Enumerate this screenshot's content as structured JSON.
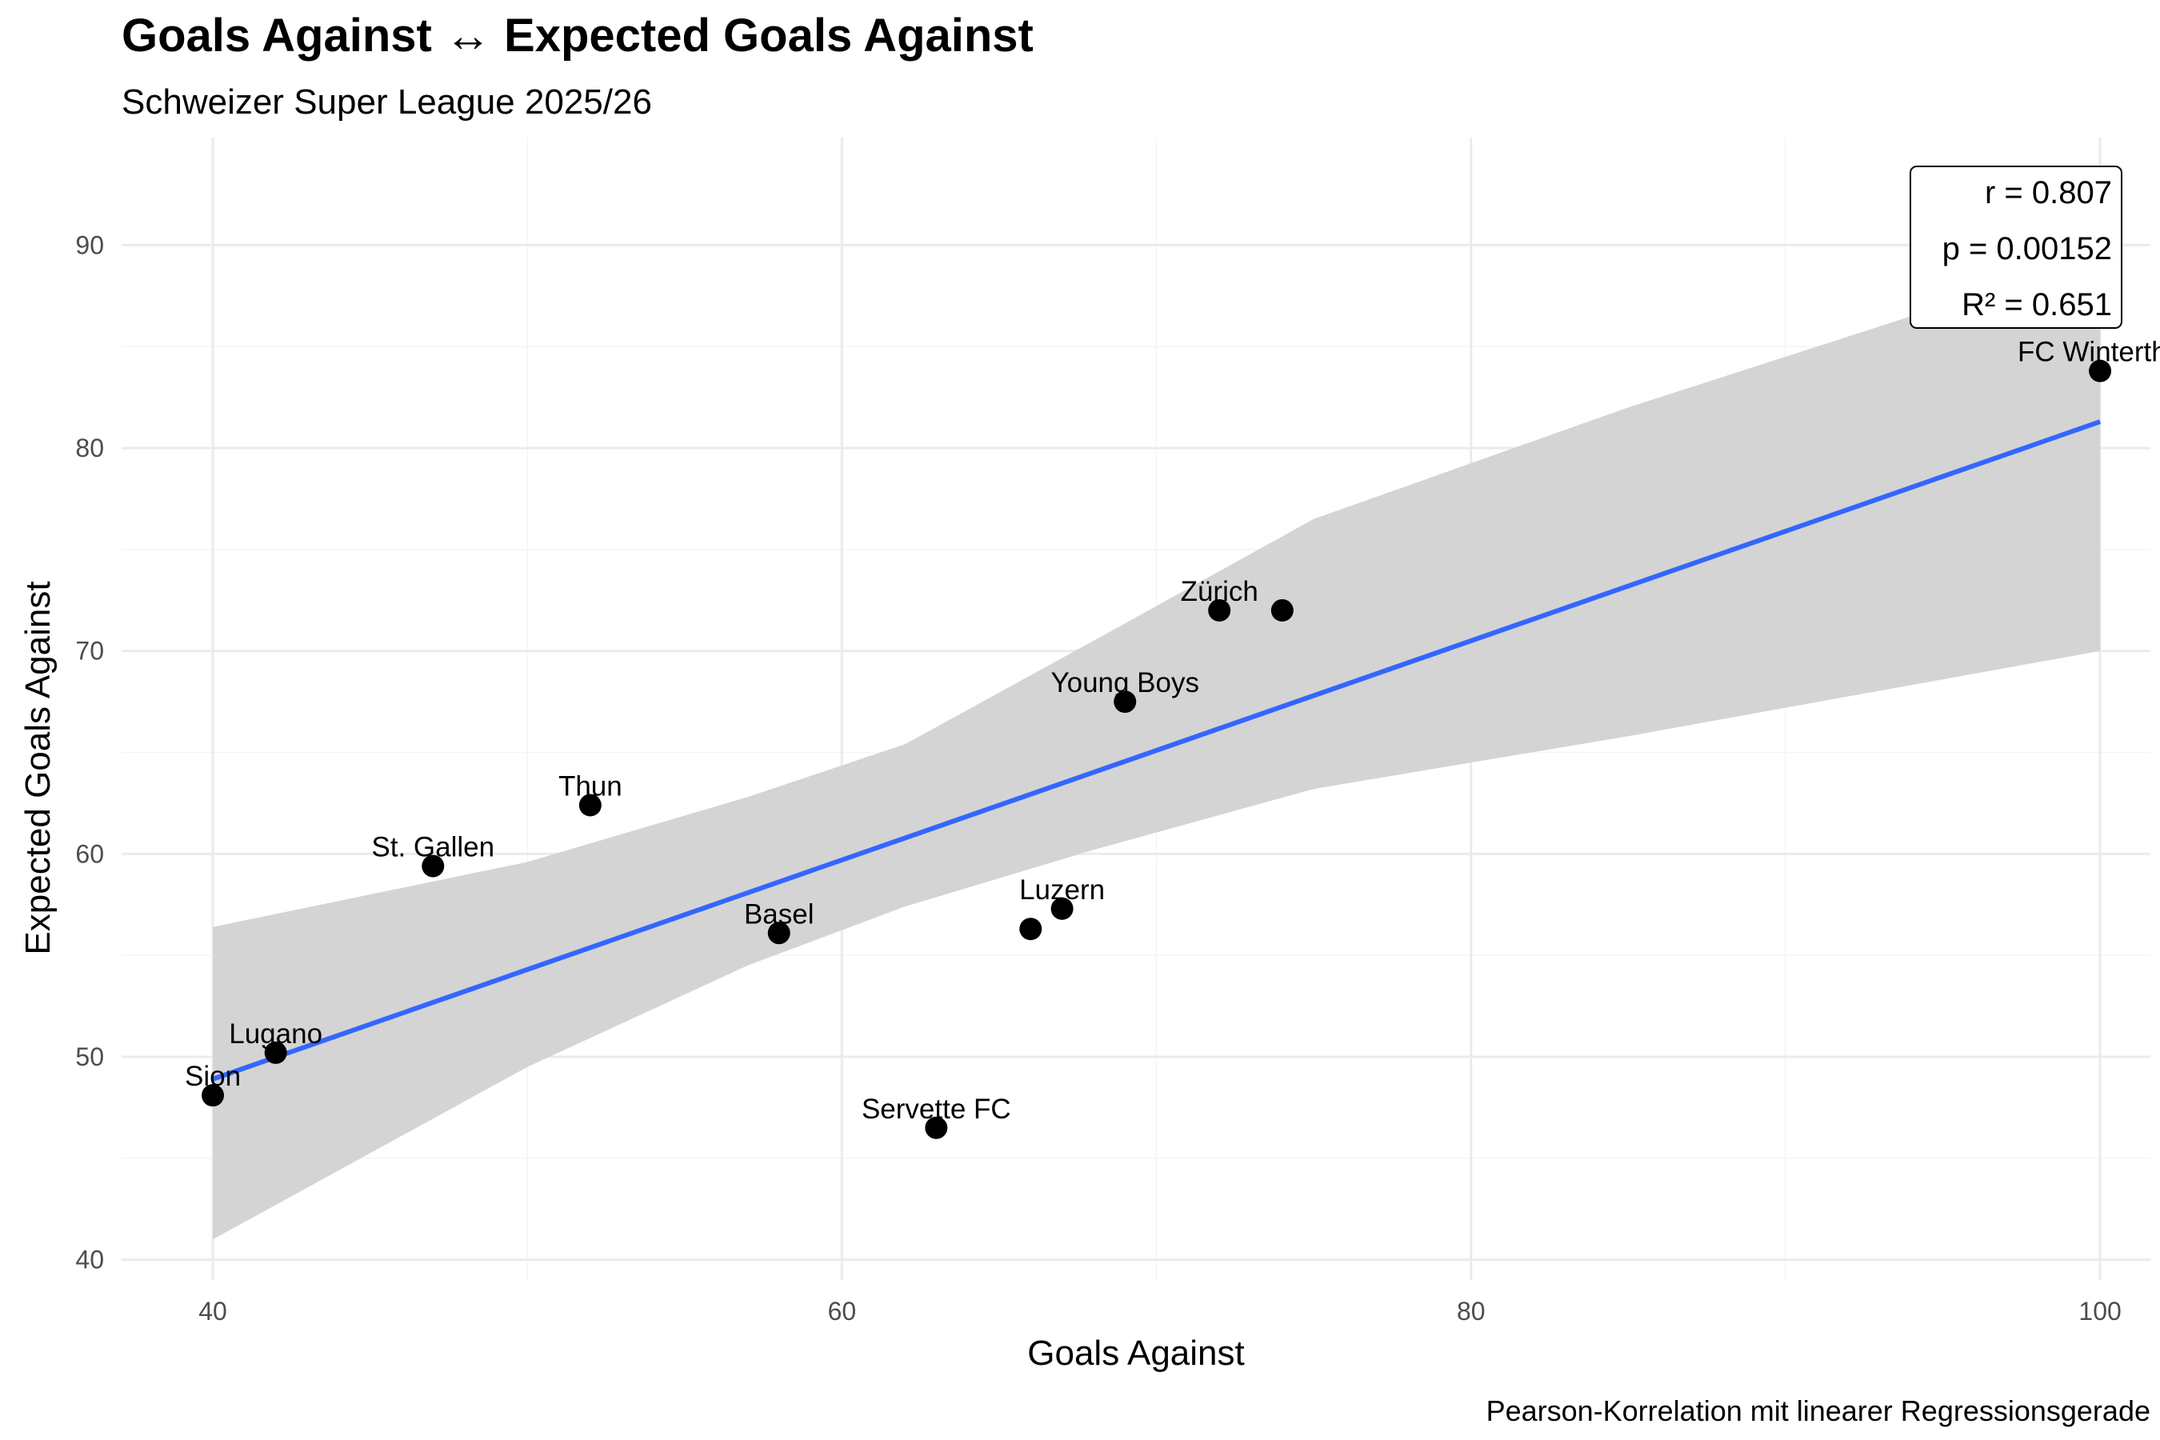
{
  "chart_data": {
    "type": "scatter",
    "title": "Goals Against ↔ Expected Goals Against",
    "subtitle": "Schweizer Super League 2025/26",
    "xlabel": "Goals Against",
    "ylabel": "Expected Goals Against",
    "caption": "Pearson-Korrelation mit linearer Regressionsgerade",
    "xlim": [
      37.1,
      101.6
    ],
    "ylim": [
      39.0,
      95.3
    ],
    "x_ticks": [
      40,
      60,
      80,
      100
    ],
    "y_ticks": [
      40,
      50,
      60,
      70,
      80,
      90
    ],
    "grid": true,
    "points": [
      {
        "x": 40,
        "y": 48.1
      },
      {
        "x": 42,
        "y": 50.2
      },
      {
        "x": 47,
        "y": 59.4
      },
      {
        "x": 52,
        "y": 62.4
      },
      {
        "x": 58,
        "y": 56.1
      },
      {
        "x": 63,
        "y": 46.5
      },
      {
        "x": 66,
        "y": 56.3
      },
      {
        "x": 67,
        "y": 57.3
      },
      {
        "x": 69,
        "y": 67.5
      },
      {
        "x": 72,
        "y": 72.0
      },
      {
        "x": 74,
        "y": 72.0
      },
      {
        "x": 100,
        "y": 83.8
      }
    ],
    "labels": [
      {
        "text": "Sion",
        "x": 40,
        "y": 48.1
      },
      {
        "text": "Lugano",
        "x": 42,
        "y": 50.2
      },
      {
        "text": "St. Gallen",
        "x": 47,
        "y": 59.4
      },
      {
        "text": "Thun",
        "x": 52,
        "y": 62.4
      },
      {
        "text": "Basel",
        "x": 58,
        "y": 56.1
      },
      {
        "text": "Servette FC",
        "x": 63,
        "y": 46.5
      },
      {
        "text": "Luzern",
        "x": 67,
        "y": 57.3
      },
      {
        "text": "Young Boys",
        "x": 69,
        "y": 67.5
      },
      {
        "text": "Zürich",
        "x": 72,
        "y": 72.0
      },
      {
        "text": "FC Winterthu",
        "x": 100,
        "y": 83.8
      }
    ],
    "regression": {
      "x": [
        40,
        100
      ],
      "y": [
        48.9,
        81.3
      ],
      "ci": [
        {
          "x": 40,
          "lo": 41.0,
          "hi": 56.4
        },
        {
          "x": 50,
          "lo": 49.5,
          "hi": 59.6
        },
        {
          "x": 57,
          "lo": 54.5,
          "hi": 62.8
        },
        {
          "x": 62,
          "lo": 57.4,
          "hi": 65.4
        },
        {
          "x": 68,
          "lo": 60.2,
          "hi": 70.5
        },
        {
          "x": 75,
          "lo": 63.2,
          "hi": 76.5
        },
        {
          "x": 85,
          "lo": 65.8,
          "hi": 82.0
        },
        {
          "x": 100,
          "lo": 70.0,
          "hi": 89.5
        }
      ],
      "line_color": "#3366ff",
      "ci_color": "#d4d4d4"
    },
    "point_color": "#000000",
    "stats": [
      "r = 0.807",
      "p = 0.00152",
      "R² = 0.651"
    ],
    "stats_position": "top-right"
  }
}
